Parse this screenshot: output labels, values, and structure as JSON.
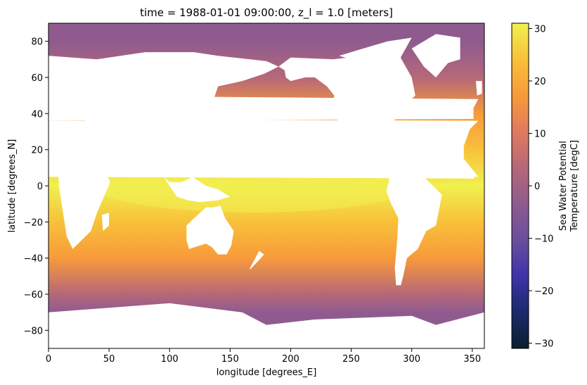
{
  "chart_data": {
    "type": "heatmap",
    "title": "time = 1988-01-01 09:00:00, z_l = 1.0 [meters]",
    "xlabel": "longitude [degrees_E]",
    "ylabel": "latitude [degrees_N]",
    "xlim": [
      0,
      360
    ],
    "ylim": [
      -90,
      90
    ],
    "x_ticks": [
      0,
      50,
      100,
      150,
      200,
      250,
      300,
      350
    ],
    "y_ticks": [
      80,
      60,
      40,
      20,
      0,
      -20,
      -40,
      -60,
      -80
    ],
    "colorbar": {
      "label_lines": [
        "Sea Water Potential",
        "Temperature [degC]"
      ],
      "range": [
        -31,
        31
      ],
      "ticks": [
        30,
        20,
        10,
        0,
        -10,
        -20,
        -30
      ],
      "colormap": [
        "#0b1f2e",
        "#1a2a6b",
        "#3e34a8",
        "#6a4e9c",
        "#8f5b8f",
        "#b56878",
        "#e07a5f",
        "#f89a3a",
        "#f8c13a",
        "#f0f04e"
      ]
    },
    "land_mask_color": "#ffffff",
    "field_description_samples": [
      {
        "lat": 80,
        "value": -2
      },
      {
        "lat": 60,
        "value": 3
      },
      {
        "lat": 40,
        "value": 14
      },
      {
        "lat": 20,
        "value": 24
      },
      {
        "lat": 0,
        "value": 28
      },
      {
        "lat": -20,
        "value": 25
      },
      {
        "lat": -40,
        "value": 14
      },
      {
        "lat": -60,
        "value": 1
      },
      {
        "lat": -70,
        "value": -2
      }
    ]
  }
}
